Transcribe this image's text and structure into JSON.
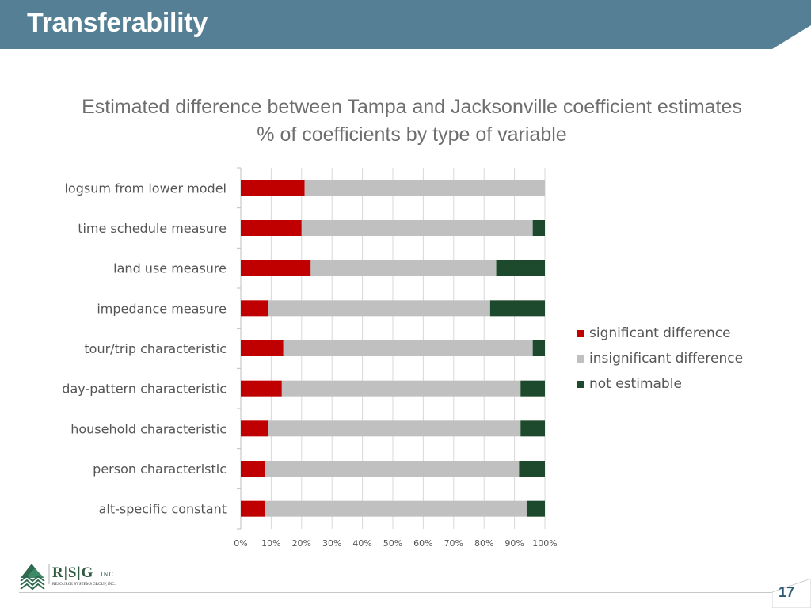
{
  "slide": {
    "title": "Transferability",
    "page_number": "17"
  },
  "logo": {
    "letters": "R|S|G",
    "suffix": "INC.",
    "company": "RESOURCE SYSTEMS GROUP, INC."
  },
  "colors": {
    "header": "#547f95",
    "significant": "#c00000",
    "insignificant": "#c0c0c0",
    "not_estimable": "#1d4a2c"
  },
  "chart_data": {
    "type": "bar",
    "orientation": "horizontal",
    "stacked": "percent",
    "title": "Estimated difference between Tampa and Jacksonville coefficient estimates",
    "subtitle": "% of coefficients by type of variable",
    "categories": [
      "logsum from lower model",
      "time schedule measure",
      "land use measure",
      "impedance measure",
      "tour/trip characteristic",
      "day-pattern characteristic",
      "household characteristic",
      "person characteristic",
      "alt-specific constant"
    ],
    "series": [
      {
        "name": "significant difference",
        "color": "#c00000",
        "values": [
          21,
          20,
          23,
          9,
          14,
          13.5,
          9,
          8,
          8
        ]
      },
      {
        "name": "insignificant difference",
        "color": "#c0c0c0",
        "values": [
          79,
          76,
          61,
          73,
          82,
          78.5,
          83,
          83.5,
          86
        ]
      },
      {
        "name": "not estimable",
        "color": "#1d4a2c",
        "values": [
          0,
          4,
          16,
          18,
          4,
          8,
          8,
          8.5,
          6
        ]
      }
    ],
    "x_ticks": [
      "0%",
      "10%",
      "20%",
      "30%",
      "40%",
      "50%",
      "60%",
      "70%",
      "80%",
      "90%",
      "100%"
    ],
    "xlim": [
      0,
      100
    ],
    "grid": true,
    "legend_position": "right"
  }
}
